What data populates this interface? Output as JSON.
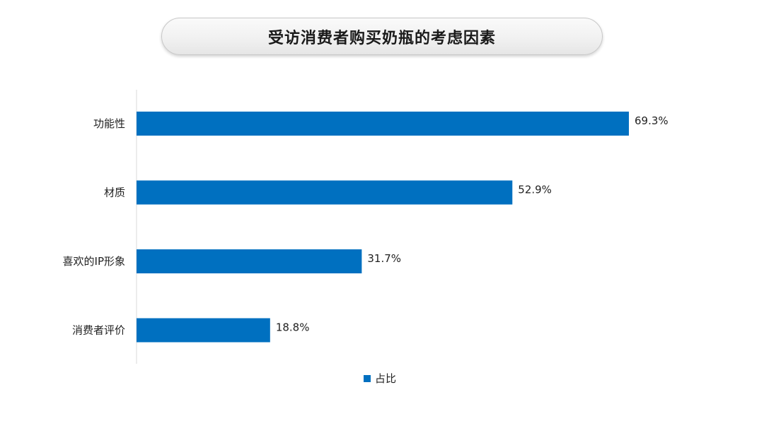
{
  "chart_data": {
    "type": "bar",
    "orientation": "horizontal",
    "title": "受访消费者购买奶瓶的考虑因素",
    "categories": [
      "功能性",
      "材质",
      "喜欢的IP形象",
      "消费者评价"
    ],
    "series": [
      {
        "name": "占比",
        "values": [
          69.3,
          52.9,
          31.7,
          18.8
        ],
        "value_labels": [
          "69.3%",
          "52.9%",
          "31.7%",
          "18.8%"
        ]
      }
    ],
    "xlim": [
      0,
      69.3
    ],
    "grid": false,
    "legend_placement": "bottom",
    "bar_color": "#0070c0"
  }
}
